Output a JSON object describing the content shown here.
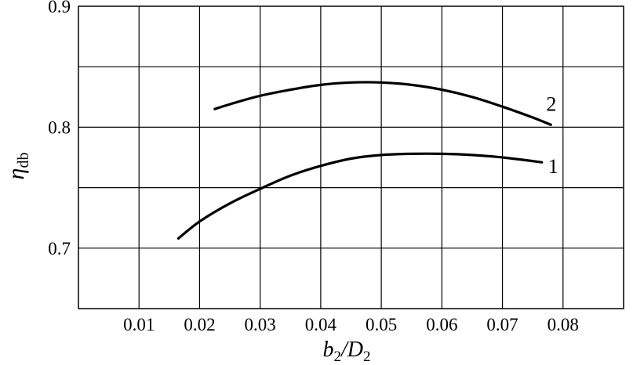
{
  "chart_data": {
    "type": "line",
    "title": "",
    "xlabel": {
      "main": "b",
      "sub1": "2",
      "sep": "/D",
      "sub2": "2"
    },
    "ylabel": {
      "main": "η",
      "sub": "db"
    },
    "xlim": [
      0.0,
      0.09
    ],
    "ylim": [
      0.65,
      0.9
    ],
    "x_ticks": [
      0.01,
      0.02,
      0.03,
      0.04,
      0.05,
      0.06,
      0.07,
      0.08
    ],
    "x_tick_labels": [
      "0.01",
      "0.02",
      "0.03",
      "0.04",
      "0.05",
      "0.06",
      "0.07",
      "0.08"
    ],
    "y_ticks": [
      0.7,
      0.8,
      0.9
    ],
    "y_tick_labels": [
      "0.7",
      "0.8",
      "0.9"
    ],
    "grid": true,
    "y_grid_lines": [
      0.7,
      0.75,
      0.8,
      0.85
    ],
    "x_grid_lines": [
      0.01,
      0.02,
      0.03,
      0.04,
      0.05,
      0.06,
      0.07,
      0.08
    ],
    "series": [
      {
        "name": "1",
        "x": [
          0.0165,
          0.02,
          0.025,
          0.03,
          0.035,
          0.04,
          0.045,
          0.05,
          0.055,
          0.06,
          0.065,
          0.07,
          0.0765
        ],
        "y": [
          0.708,
          0.722,
          0.737,
          0.749,
          0.76,
          0.768,
          0.774,
          0.777,
          0.778,
          0.778,
          0.777,
          0.775,
          0.771
        ]
      },
      {
        "name": "2",
        "x": [
          0.0225,
          0.025,
          0.03,
          0.035,
          0.04,
          0.045,
          0.05,
          0.055,
          0.06,
          0.065,
          0.07,
          0.075,
          0.078
        ],
        "y": [
          0.815,
          0.819,
          0.826,
          0.831,
          0.835,
          0.837,
          0.837,
          0.835,
          0.831,
          0.825,
          0.817,
          0.808,
          0.802
        ]
      }
    ],
    "line_color": "#000000",
    "grid_color": "#000000"
  }
}
